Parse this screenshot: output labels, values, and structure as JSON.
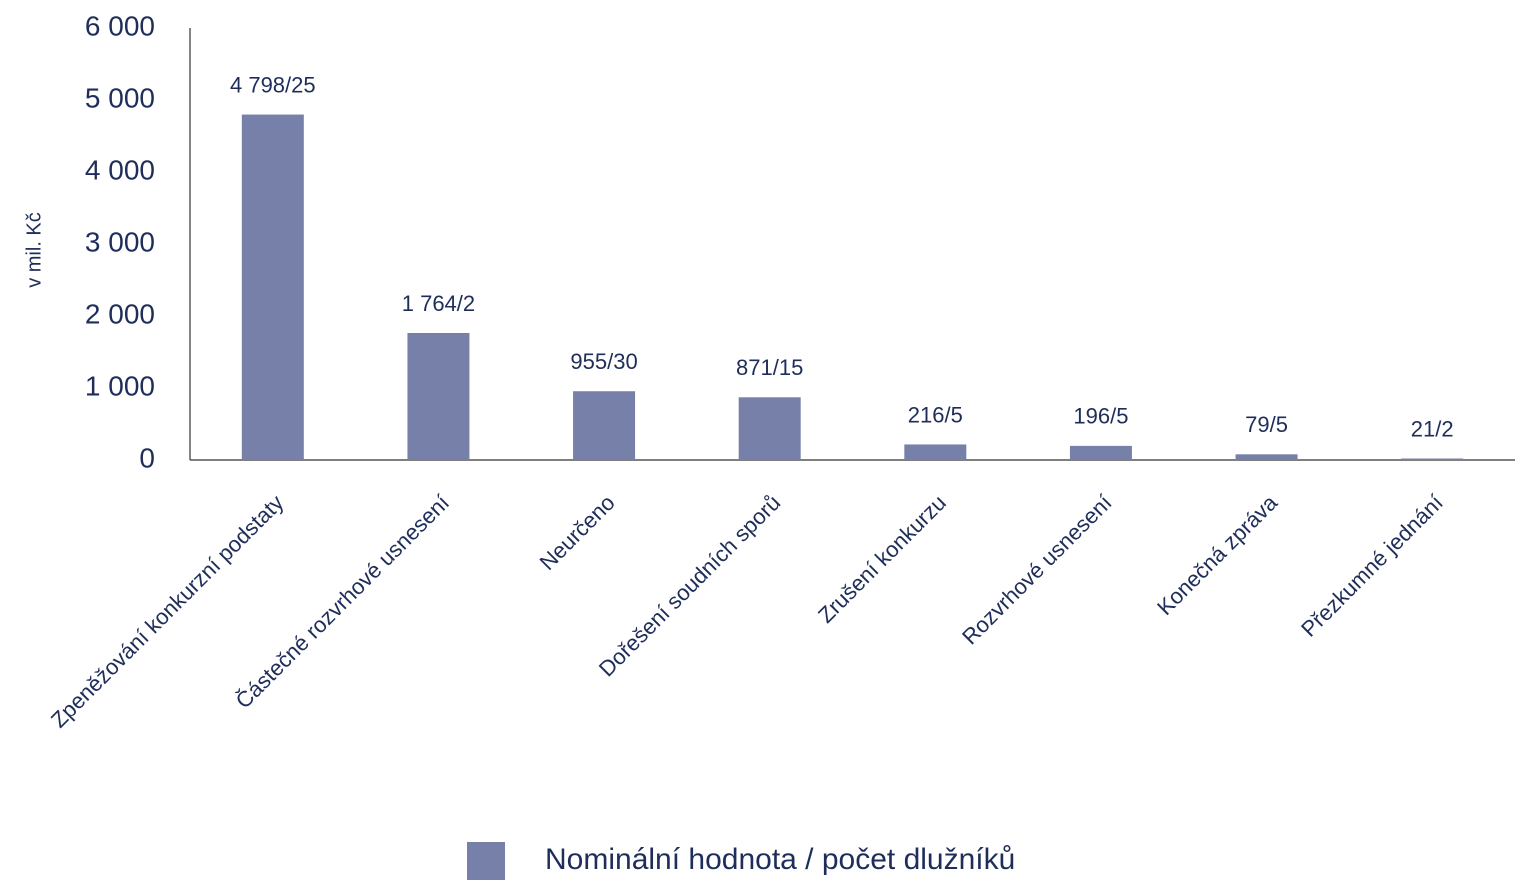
{
  "chart_data": {
    "type": "bar",
    "y_axis_label": "v mil. Kč",
    "categories": [
      "Zpeněžování konkurzní podstaty",
      "Částečné rozvrhové usnesení",
      "Neurčeno",
      "Dořešení soudních sporů",
      "Zrušení konkurzu",
      "Rozvrhové usnesení",
      "Konečná zpráva",
      "Přezkumné jednání"
    ],
    "series": [
      {
        "name": "Nominální hodnota / počet dlužníků",
        "color": "#7680a8",
        "values": [
          4798,
          1764,
          955,
          871,
          216,
          196,
          79,
          21
        ],
        "value_labels": [
          "4 798/25",
          "1 764/2",
          "955/30",
          "871/15",
          "216/5",
          "196/5",
          "79/5",
          "21/2"
        ]
      }
    ],
    "ylim": [
      0,
      6000
    ],
    "yticks": [
      0,
      {
        "value": 1000,
        "label": "1 000"
      },
      {
        "value": 2000,
        "label": "2 000"
      },
      {
        "value": 3000,
        "label": "3 000"
      },
      {
        "value": 4000,
        "label": "4 000"
      },
      {
        "value": 5000,
        "label": "5 000"
      },
      {
        "value": 6000,
        "label": "6 000"
      }
    ],
    "grid": false,
    "legend": "bottom"
  }
}
